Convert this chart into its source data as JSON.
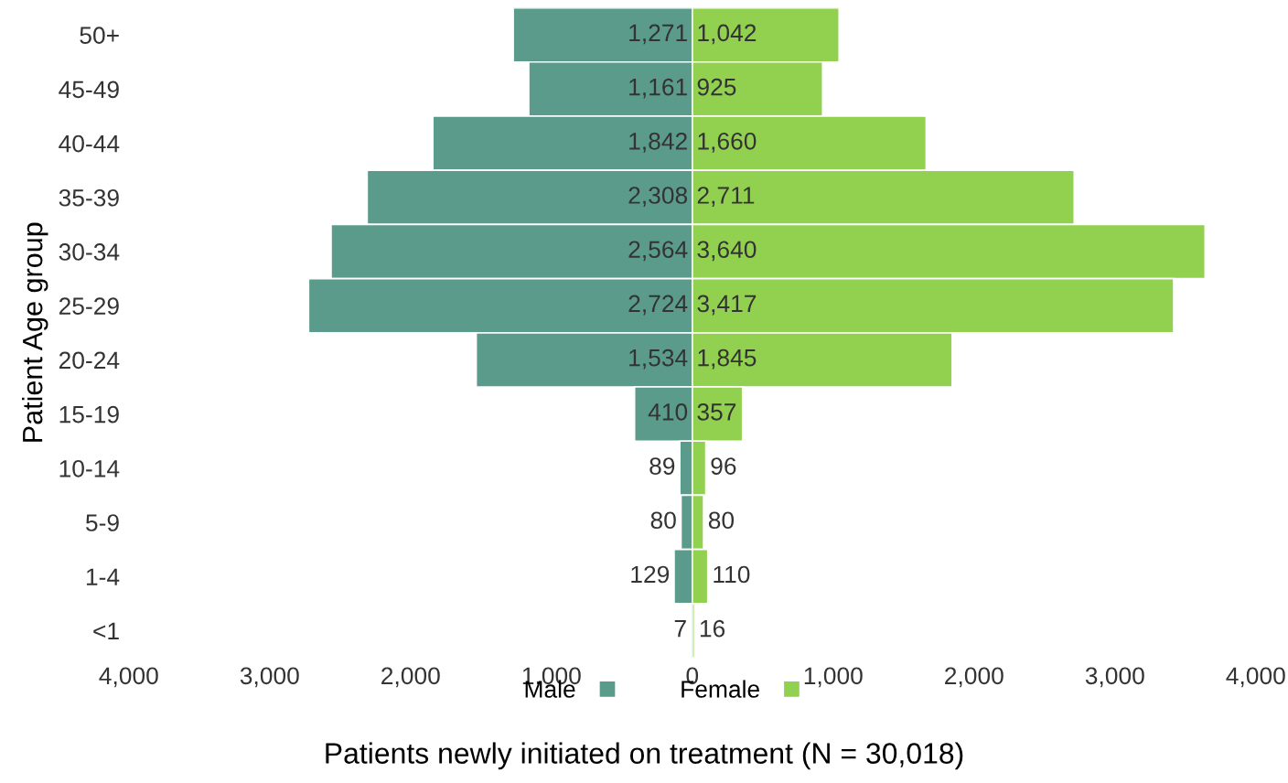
{
  "chart_data": [
    {
      "type": "bar",
      "orientation": "horizontal",
      "categories": [
        "50+",
        "45-49",
        "40-44",
        "35-39",
        "30-34",
        "25-29",
        "20-24",
        "15-19",
        "10-14",
        "5-9",
        "1-4",
        "<1"
      ],
      "series": [
        {
          "name": "Male",
          "color": "#5b9b8b",
          "values": [
            1271,
            1161,
            1842,
            2308,
            2564,
            2724,
            1534,
            410,
            89,
            80,
            129,
            7
          ],
          "value_labels": [
            "1,271",
            "1,161",
            "1,842",
            "2,308",
            "2,564",
            "2,724",
            "1,534",
            "410",
            "89",
            "80",
            "129",
            "7"
          ]
        }
      ],
      "xlim": [
        4000,
        0
      ],
      "xticks": [
        {
          "value": 4000,
          "label": "4,000"
        },
        {
          "value": 3000,
          "label": "3,000"
        },
        {
          "value": 2000,
          "label": "2,000"
        },
        {
          "value": 1000,
          "label": "1,000"
        }
      ],
      "ylabel": "Patient Age group",
      "xlabel": "Patients newly initiated on treatment (N = 30,018)",
      "legend": "bottom",
      "grid": false
    },
    {
      "type": "bar",
      "orientation": "horizontal",
      "categories": [
        null,
        null,
        null,
        null,
        null,
        null,
        null,
        null,
        null,
        null,
        null,
        null
      ],
      "series": [
        {
          "name": "Female",
          "color": "#92d050",
          "values": [
            1042,
            925,
            1660,
            2711,
            3640,
            3417,
            1845,
            357,
            96,
            80,
            110,
            16
          ],
          "value_labels": [
            "1,042",
            "925",
            "1,660",
            "2,711",
            "3,640",
            "3,417",
            "1,845",
            "357",
            "96",
            "80",
            "110",
            "16"
          ]
        }
      ],
      "xlim": [
        0,
        4000
      ],
      "xticks": [
        0,
        {
          "value": 1000,
          "label": "1,000"
        },
        {
          "value": 2000,
          "label": "2,000"
        },
        {
          "value": 3000,
          "label": "3,000"
        },
        {
          "value": 4000,
          "label": "4,000"
        }
      ],
      "tick_labels": "x",
      "legend": "bottom",
      "grid": false
    }
  ]
}
